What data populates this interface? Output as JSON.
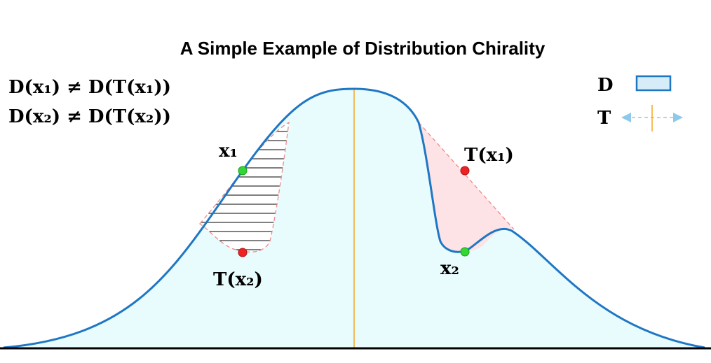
{
  "title": "A Simple Example of Distribution Chirality",
  "equations": [
    "D(x₁) ≠ D(T(x₁))",
    "D(x₂) ≠ D(T(x₂))"
  ],
  "points": {
    "x1": "x₁",
    "x2": "x₂",
    "t_x1": "T(x₁)",
    "t_x2": "T(x₂)"
  },
  "legend": [
    "D",
    "T"
  ]
}
